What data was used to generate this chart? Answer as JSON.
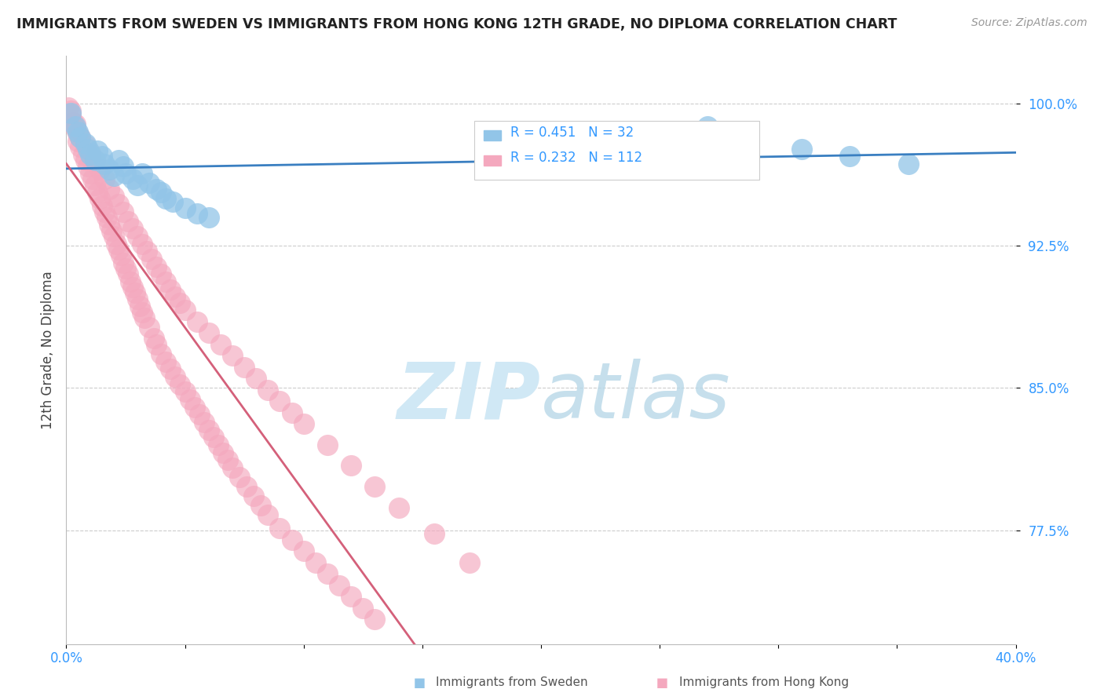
{
  "title": "IMMIGRANTS FROM SWEDEN VS IMMIGRANTS FROM HONG KONG 12TH GRADE, NO DIPLOMA CORRELATION CHART",
  "source": "Source: ZipAtlas.com",
  "ylabel": "12th Grade, No Diploma",
  "xlim": [
    0.0,
    0.4
  ],
  "ylim": [
    0.715,
    1.025
  ],
  "yticks": [
    0.775,
    0.85,
    0.925,
    1.0
  ],
  "ytick_labels": [
    "77.5%",
    "85.0%",
    "92.5%",
    "100.0%"
  ],
  "xtick_left_label": "0.0%",
  "xtick_right_label": "40.0%",
  "sweden_R": 0.451,
  "sweden_N": 32,
  "hk_R": 0.232,
  "hk_N": 112,
  "sweden_color": "#92c5e8",
  "hk_color": "#f4a8be",
  "sweden_edge_color": "#5a9fd4",
  "hk_edge_color": "#e07090",
  "sweden_line_color": "#3a7fc1",
  "hk_line_color": "#d4607a",
  "watermark_color": "#d0e8f5",
  "background_color": "#ffffff",
  "grid_color": "#cccccc",
  "legend_label_sweden": "Immigrants from Sweden",
  "legend_label_hk": "Immigrants from Hong Kong",
  "sweden_x": [
    0.002,
    0.004,
    0.005,
    0.006,
    0.008,
    0.009,
    0.01,
    0.012,
    0.013,
    0.015,
    0.016,
    0.018,
    0.02,
    0.022,
    0.024,
    0.025,
    0.028,
    0.03,
    0.032,
    0.035,
    0.038,
    0.04,
    0.042,
    0.045,
    0.05,
    0.055,
    0.06,
    0.27,
    0.285,
    0.31,
    0.33,
    0.355
  ],
  "sweden_y": [
    0.995,
    0.988,
    0.985,
    0.982,
    0.979,
    0.976,
    0.973,
    0.97,
    0.975,
    0.972,
    0.968,
    0.965,
    0.962,
    0.97,
    0.967,
    0.963,
    0.96,
    0.957,
    0.963,
    0.958,
    0.955,
    0.953,
    0.95,
    0.948,
    0.945,
    0.942,
    0.94,
    0.988,
    0.982,
    0.976,
    0.972,
    0.968
  ],
  "hk_x": [
    0.001,
    0.002,
    0.003,
    0.004,
    0.005,
    0.005,
    0.006,
    0.007,
    0.008,
    0.009,
    0.01,
    0.011,
    0.012,
    0.013,
    0.014,
    0.015,
    0.016,
    0.017,
    0.018,
    0.019,
    0.02,
    0.021,
    0.022,
    0.023,
    0.024,
    0.025,
    0.026,
    0.027,
    0.028,
    0.029,
    0.03,
    0.031,
    0.032,
    0.033,
    0.035,
    0.037,
    0.038,
    0.04,
    0.042,
    0.044,
    0.046,
    0.048,
    0.05,
    0.052,
    0.054,
    0.056,
    0.058,
    0.06,
    0.062,
    0.064,
    0.066,
    0.068,
    0.07,
    0.073,
    0.076,
    0.079,
    0.082,
    0.085,
    0.09,
    0.095,
    0.1,
    0.105,
    0.11,
    0.115,
    0.12,
    0.125,
    0.13,
    0.002,
    0.004,
    0.006,
    0.008,
    0.01,
    0.012,
    0.014,
    0.016,
    0.018,
    0.02,
    0.022,
    0.024,
    0.026,
    0.028,
    0.03,
    0.032,
    0.034,
    0.036,
    0.038,
    0.04,
    0.042,
    0.044,
    0.046,
    0.048,
    0.05,
    0.055,
    0.06,
    0.065,
    0.07,
    0.075,
    0.08,
    0.085,
    0.09,
    0.095,
    0.1,
    0.11,
    0.12,
    0.13,
    0.14,
    0.155,
    0.17
  ],
  "hk_y": [
    0.998,
    0.994,
    0.99,
    0.987,
    0.984,
    0.98,
    0.977,
    0.973,
    0.97,
    0.967,
    0.963,
    0.96,
    0.957,
    0.953,
    0.95,
    0.946,
    0.943,
    0.94,
    0.936,
    0.933,
    0.93,
    0.926,
    0.923,
    0.92,
    0.916,
    0.913,
    0.91,
    0.906,
    0.903,
    0.9,
    0.897,
    0.893,
    0.89,
    0.887,
    0.882,
    0.876,
    0.873,
    0.868,
    0.864,
    0.86,
    0.856,
    0.852,
    0.848,
    0.844,
    0.84,
    0.836,
    0.832,
    0.828,
    0.824,
    0.82,
    0.816,
    0.812,
    0.808,
    0.803,
    0.798,
    0.793,
    0.788,
    0.783,
    0.776,
    0.77,
    0.764,
    0.758,
    0.752,
    0.746,
    0.74,
    0.734,
    0.728,
    0.996,
    0.989,
    0.982,
    0.978,
    0.974,
    0.97,
    0.965,
    0.96,
    0.955,
    0.951,
    0.947,
    0.943,
    0.938,
    0.934,
    0.93,
    0.926,
    0.922,
    0.918,
    0.914,
    0.91,
    0.906,
    0.902,
    0.898,
    0.895,
    0.891,
    0.885,
    0.879,
    0.873,
    0.867,
    0.861,
    0.855,
    0.849,
    0.843,
    0.837,
    0.831,
    0.82,
    0.809,
    0.798,
    0.787,
    0.773,
    0.758
  ]
}
